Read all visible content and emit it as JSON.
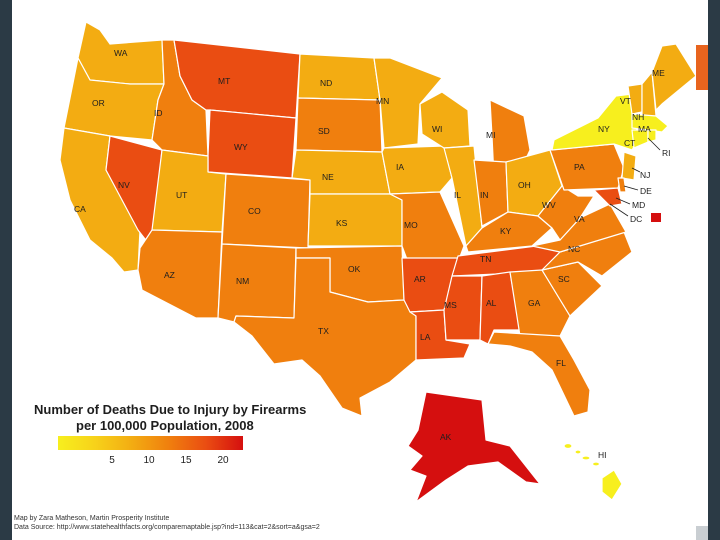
{
  "legend": {
    "title_line1": "Number of Deaths Due to Injury by Firearms",
    "title_line2": "per 100,000 Population, 2008",
    "ticks": [
      "5",
      "10",
      "15",
      "20"
    ],
    "scale_colors": [
      "#f7ef1e",
      "#f3ac12",
      "#f07f0e",
      "#ea4d12",
      "#d50f0f"
    ]
  },
  "credits": {
    "author": "Map by Zara Matheson, Martin Prosperity Institute",
    "source": "Data Source: http://www.statehealthfacts.org/comparemaptable.jsp?ind=113&cat=2&sort=a&gsa=2"
  },
  "states": {
    "WA": "WA",
    "OR": "OR",
    "CA": "CA",
    "ID": "ID",
    "NV": "NV",
    "MT": "MT",
    "WY": "WY",
    "UT": "UT",
    "AZ": "AZ",
    "CO": "CO",
    "NM": "NM",
    "ND": "ND",
    "SD": "SD",
    "NE": "NE",
    "KS": "KS",
    "OK": "OK",
    "TX": "TX",
    "MN": "MN",
    "IA": "IA",
    "MO": "MO",
    "AR": "AR",
    "LA": "LA",
    "WI": "WI",
    "IL": "IL",
    "MI": "MI",
    "IN": "IN",
    "OH": "OH",
    "KY": "KY",
    "TN": "TN",
    "MS": "MS",
    "AL": "AL",
    "GA": "GA",
    "FL": "FL",
    "SC": "SC",
    "NC": "NC",
    "VA": "VA",
    "WV": "WV",
    "PA": "PA",
    "NY": "NY",
    "VT": "VT",
    "NH": "NH",
    "ME": "ME",
    "MA": "MA",
    "CT": "CT",
    "RI": "RI",
    "NJ": "NJ",
    "DE": "DE",
    "MD": "MD",
    "DC": "DC",
    "AK": "AK",
    "HI": "HI"
  },
  "colors": {
    "yellow": "#f7ef1e",
    "light_orange": "#f3ac12",
    "orange": "#f07f0e",
    "red_orange": "#ea4d12",
    "red": "#d50f0f",
    "state_border": "#ffffff",
    "accent": "#e8641e"
  }
}
